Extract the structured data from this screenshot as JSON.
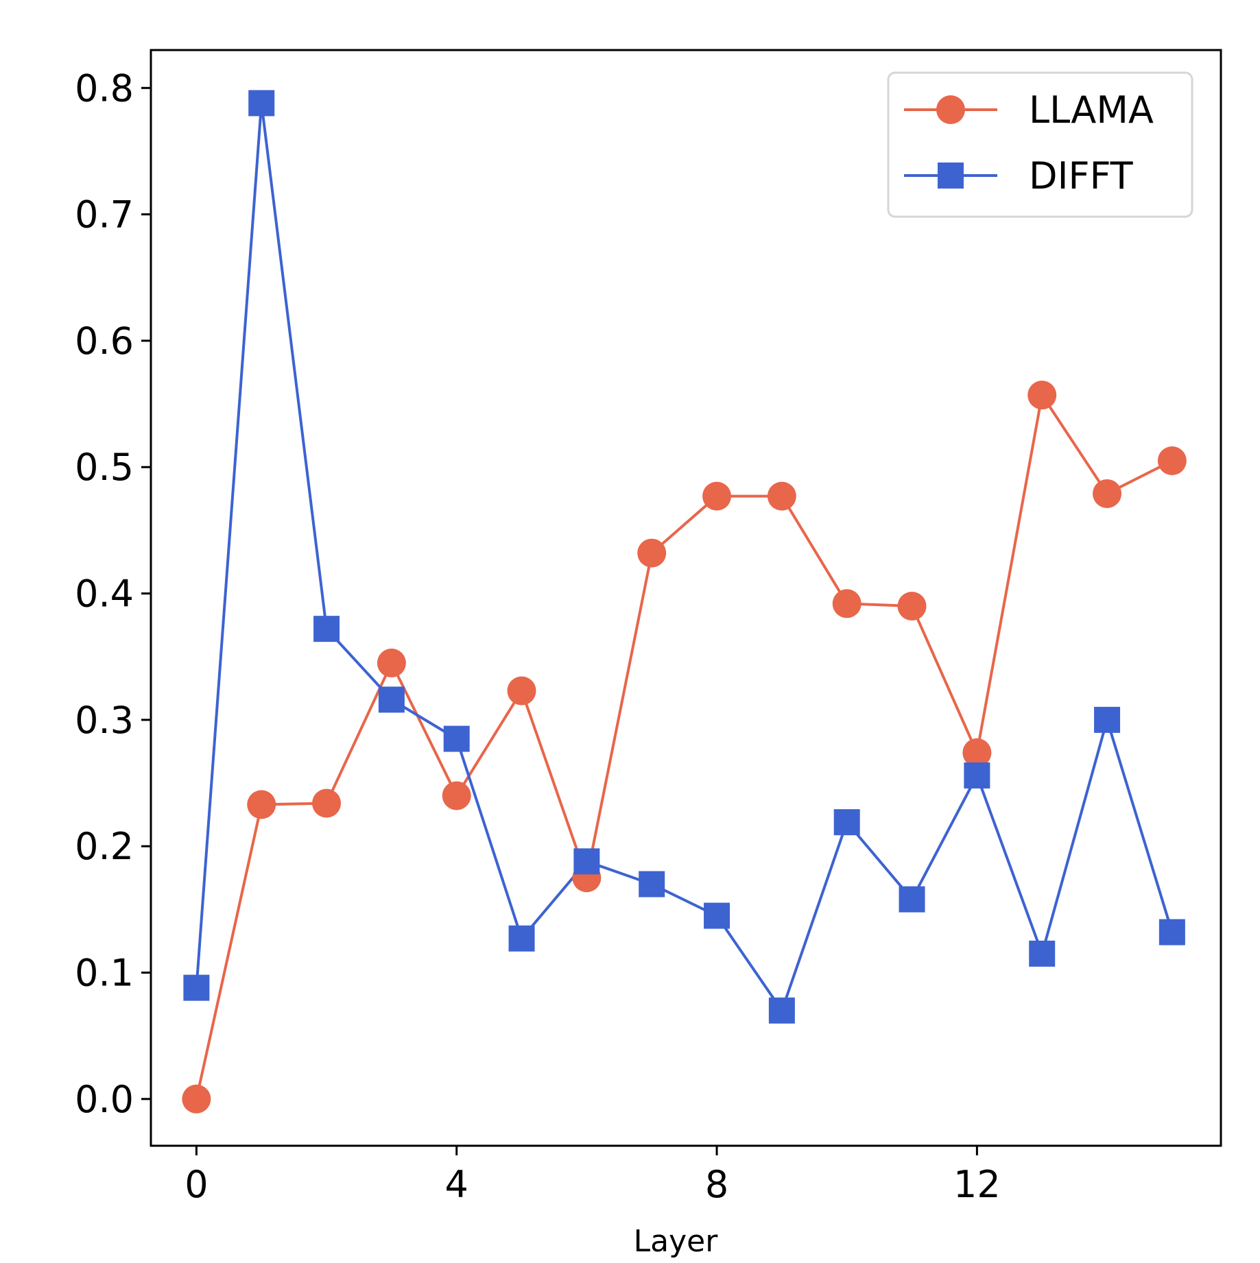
{
  "chart_data": {
    "type": "line",
    "title": "",
    "xlabel": "Layer",
    "ylabel": "",
    "xlim": [
      -0.7,
      15.75
    ],
    "ylim": [
      -0.037,
      0.83
    ],
    "xticks": [
      0,
      4,
      8,
      12
    ],
    "xtick_labels": [
      "0",
      "4",
      "8",
      "12"
    ],
    "yticks": [
      0.0,
      0.1,
      0.2,
      0.3,
      0.4,
      0.5,
      0.6,
      0.7,
      0.8
    ],
    "ytick_labels": [
      "0.0",
      "0.1",
      "0.2",
      "0.3",
      "0.4",
      "0.5",
      "0.6",
      "0.7",
      "0.8"
    ],
    "grid": false,
    "legend_position": "top-right",
    "x": [
      0,
      1,
      2,
      3,
      4,
      5,
      6,
      7,
      8,
      9,
      10,
      11,
      12,
      13,
      14,
      15
    ],
    "series": [
      {
        "name": "LLAMA",
        "color": "#e8664a",
        "marker": "circle",
        "values": [
          0.0,
          0.233,
          0.234,
          0.345,
          0.24,
          0.323,
          0.175,
          0.432,
          0.477,
          0.477,
          0.392,
          0.39,
          0.274,
          0.557,
          0.479,
          0.505
        ]
      },
      {
        "name": "DIFFT",
        "color": "#3d63d1",
        "marker": "square",
        "values": [
          0.088,
          0.788,
          0.372,
          0.316,
          0.285,
          0.127,
          0.188,
          0.17,
          0.145,
          0.07,
          0.219,
          0.158,
          0.256,
          0.115,
          0.3,
          0.132
        ]
      }
    ]
  }
}
